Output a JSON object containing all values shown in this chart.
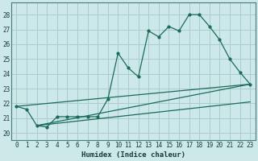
{
  "title": "",
  "xlabel": "Humidex (Indice chaleur)",
  "xlim": [
    -0.5,
    23.5
  ],
  "ylim": [
    19.5,
    28.8
  ],
  "xticks": [
    0,
    1,
    2,
    3,
    4,
    5,
    6,
    7,
    8,
    9,
    10,
    11,
    12,
    13,
    14,
    15,
    16,
    17,
    18,
    19,
    20,
    21,
    22,
    23
  ],
  "yticks": [
    20,
    21,
    22,
    23,
    24,
    25,
    26,
    27,
    28
  ],
  "background_color": "#cce8e8",
  "grid_color": "#aacccc",
  "line_color": "#1a6b5a",
  "line1_x": [
    0,
    1,
    2,
    3,
    4,
    5,
    6,
    7,
    8,
    9,
    10,
    11,
    12,
    13,
    14,
    15,
    16,
    17,
    18,
    19,
    20,
    21,
    22,
    23
  ],
  "line1_y": [
    21.8,
    21.6,
    20.5,
    20.4,
    21.1,
    21.1,
    21.1,
    21.1,
    21.1,
    22.3,
    25.4,
    24.4,
    23.8,
    26.9,
    26.5,
    27.2,
    26.9,
    28.0,
    28.0,
    27.2,
    26.3,
    25.0,
    24.1,
    23.3
  ],
  "line2_x": [
    0,
    23
  ],
  "line2_y": [
    21.8,
    23.3
  ],
  "line3_x": [
    2,
    23
  ],
  "line3_y": [
    20.5,
    23.3
  ],
  "line4_x": [
    2,
    23
  ],
  "line4_y": [
    20.5,
    22.1
  ]
}
